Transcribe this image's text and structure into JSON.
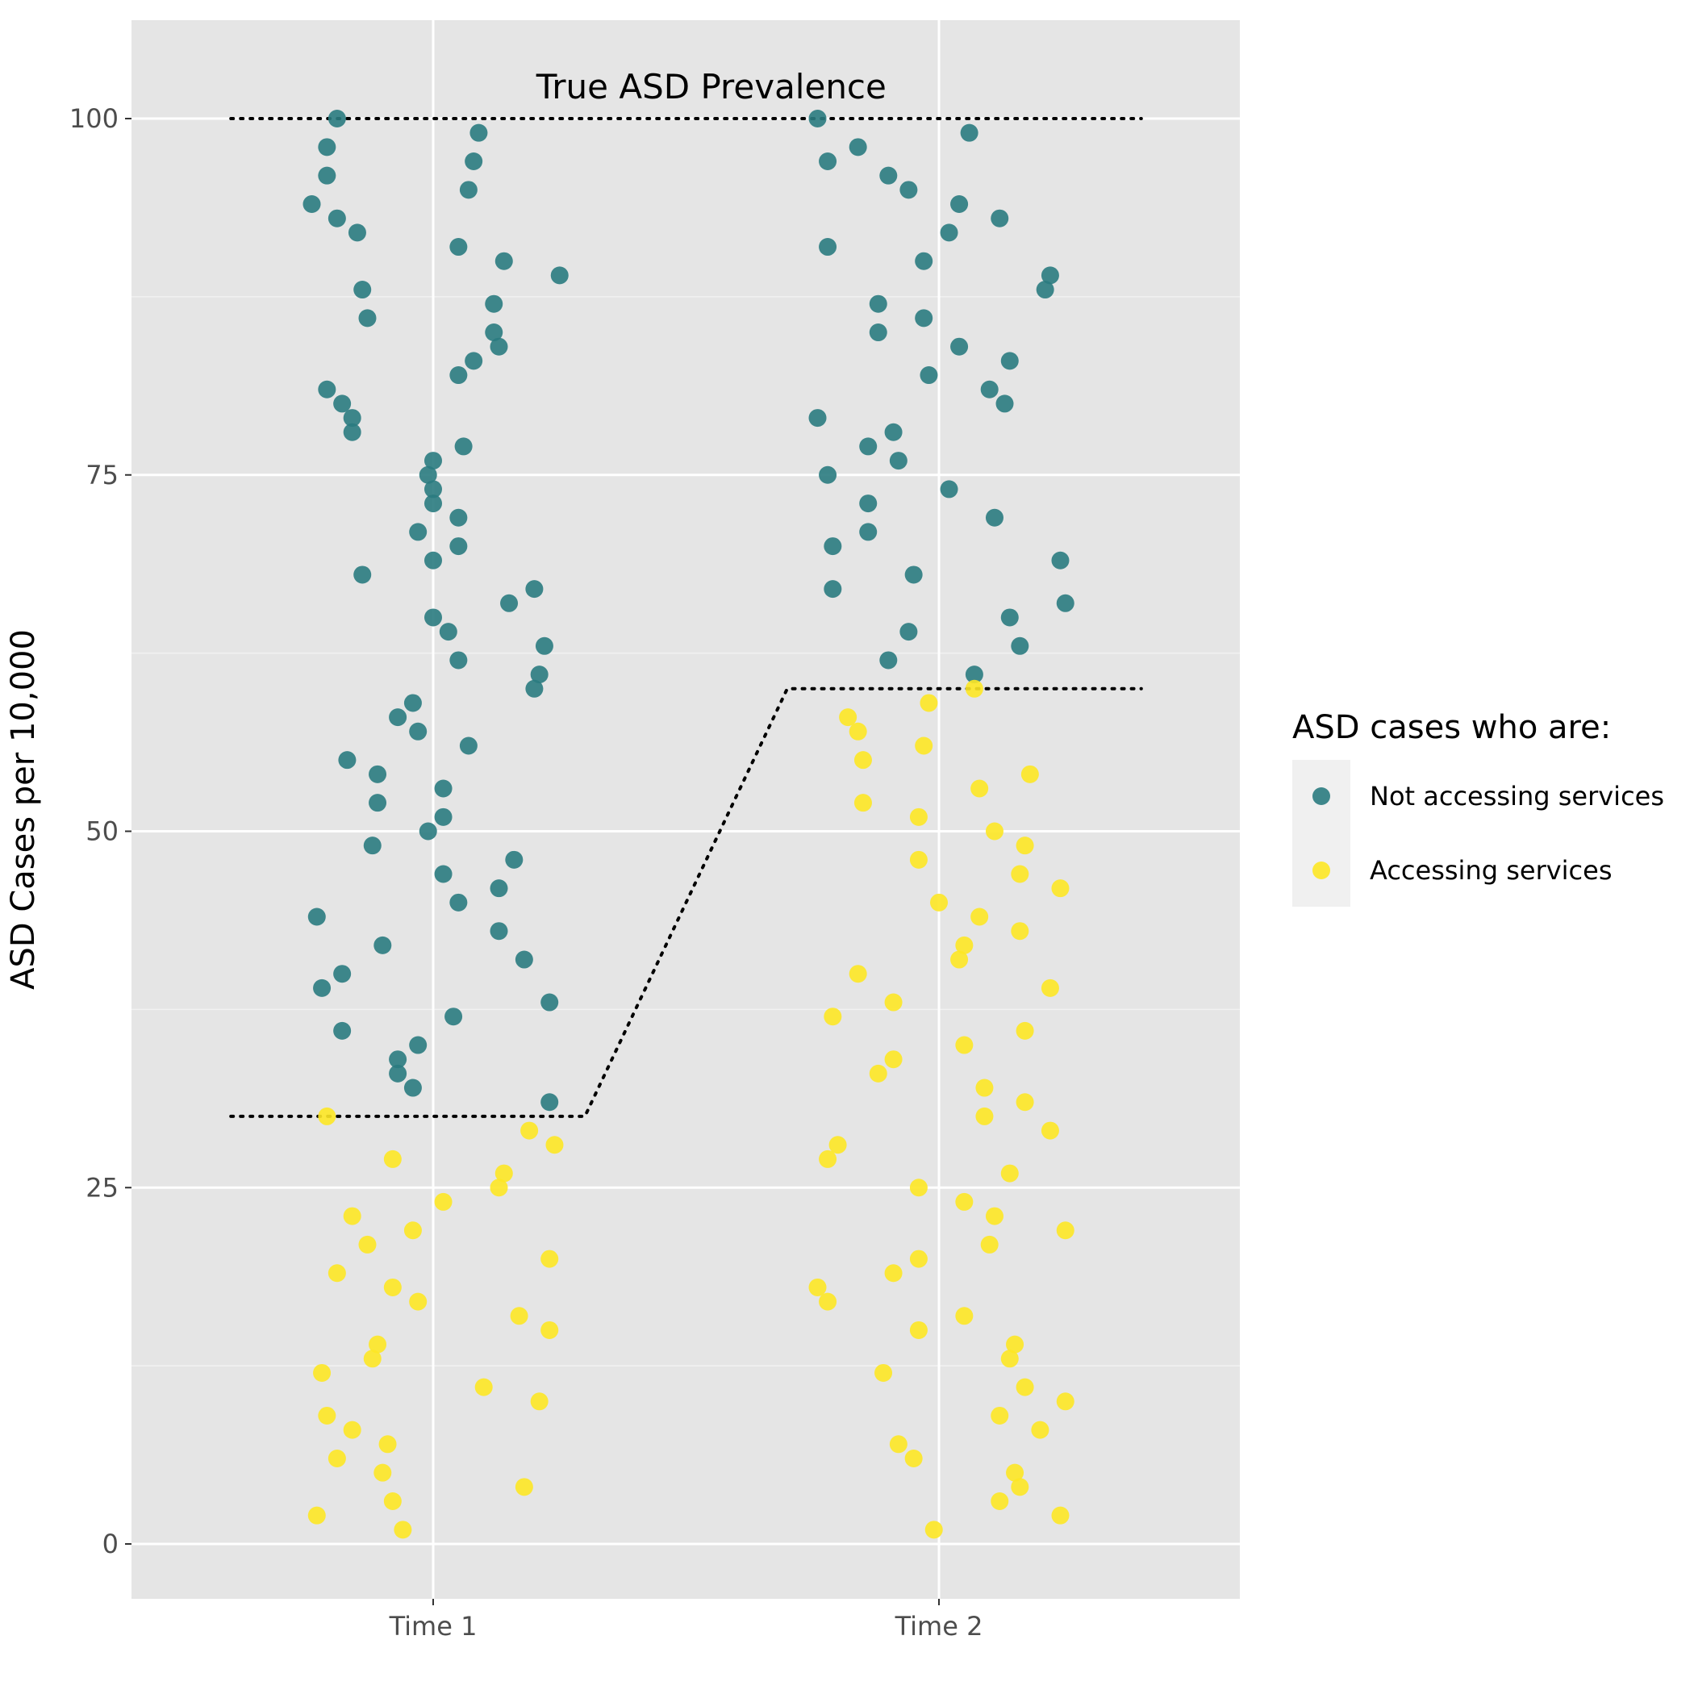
{
  "chart_data": {
    "type": "scatter",
    "title": "",
    "xlabel": "",
    "ylabel": "ASD Cases per 10,000",
    "ylim": [
      -4,
      107
    ],
    "y_ticks": [
      {
        "value": 0,
        "label": "0"
      },
      {
        "value": 25,
        "label": "25"
      },
      {
        "value": 50,
        "label": "50"
      },
      {
        "value": 75,
        "label": "75"
      },
      {
        "value": 100,
        "label": "100"
      }
    ],
    "x_categories": [
      "Time 1",
      "Time 2"
    ],
    "grid": true,
    "background": "#e5e5e5",
    "legend": {
      "title": "ASD cases who are:",
      "placement": "right",
      "items": [
        {
          "label": "Not accessing services",
          "color": "#2a7b7f"
        },
        {
          "label": "Accessing services",
          "color": "#fde725"
        }
      ]
    },
    "annotation": {
      "text": "True ASD Prevalence",
      "x": 1.55,
      "y": 102.2
    },
    "reference_lines": [
      {
        "name": "true-prevalence-line",
        "points": [
          [
            0.6,
            100
          ],
          [
            2.4,
            100
          ]
        ]
      },
      {
        "name": "accessing-services-line",
        "points": [
          [
            0.6,
            30
          ],
          [
            1.3,
            30
          ],
          [
            1.7,
            60
          ],
          [
            2.4,
            60
          ]
        ]
      }
    ],
    "series": [
      {
        "name": "Not accessing services",
        "color": "#2a7b7f",
        "points": [
          [
            0.81,
            100
          ],
          [
            0.79,
            98
          ],
          [
            0.79,
            96
          ],
          [
            0.76,
            94
          ],
          [
            0.81,
            93
          ],
          [
            0.85,
            92
          ],
          [
            0.86,
            88
          ],
          [
            0.87,
            86
          ],
          [
            0.79,
            81
          ],
          [
            0.82,
            80
          ],
          [
            0.84,
            79
          ],
          [
            0.84,
            78
          ],
          [
            0.86,
            68
          ],
          [
            0.77,
            44
          ],
          [
            0.78,
            39
          ],
          [
            0.82,
            40
          ],
          [
            0.82,
            36
          ],
          [
            0.83,
            55
          ],
          [
            0.89,
            54
          ],
          [
            0.89,
            52
          ],
          [
            0.88,
            49
          ],
          [
            0.9,
            42
          ],
          [
            0.93,
            34
          ],
          [
            0.93,
            33
          ],
          [
            0.96,
            32
          ],
          [
            0.97,
            35
          ],
          [
            0.93,
            58
          ],
          [
            0.96,
            59
          ],
          [
            0.97,
            57
          ],
          [
            0.97,
            71
          ],
          [
            0.99,
            75
          ],
          [
            1.0,
            76
          ],
          [
            1.0,
            73
          ],
          [
            1.0,
            69
          ],
          [
            1.0,
            65
          ],
          [
            1.0,
            74
          ],
          [
            0.99,
            50
          ],
          [
            1.02,
            51
          ],
          [
            1.02,
            53
          ],
          [
            1.02,
            47
          ],
          [
            1.03,
            64
          ],
          [
            1.05,
            62
          ],
          [
            1.05,
            45
          ],
          [
            1.04,
            37
          ],
          [
            1.05,
            91
          ],
          [
            1.05,
            82
          ],
          [
            1.06,
            77
          ],
          [
            1.05,
            72
          ],
          [
            1.05,
            70
          ],
          [
            1.07,
            56
          ],
          [
            1.09,
            99
          ],
          [
            1.08,
            97
          ],
          [
            1.07,
            95
          ],
          [
            1.08,
            83
          ],
          [
            1.12,
            85
          ],
          [
            1.13,
            84
          ],
          [
            1.12,
            87
          ],
          [
            1.14,
            90
          ],
          [
            1.15,
            66
          ],
          [
            1.13,
            46
          ],
          [
            1.13,
            43
          ],
          [
            1.16,
            48
          ],
          [
            1.18,
            41
          ],
          [
            1.2,
            67
          ],
          [
            1.2,
            60
          ],
          [
            1.21,
            61
          ],
          [
            1.22,
            63
          ],
          [
            1.23,
            38
          ],
          [
            1.23,
            31
          ],
          [
            1.25,
            89
          ],
          [
            1.76,
            100
          ],
          [
            1.78,
            97
          ],
          [
            1.84,
            98
          ],
          [
            1.78,
            91
          ],
          [
            1.88,
            87
          ],
          [
            1.88,
            85
          ],
          [
            1.76,
            79
          ],
          [
            1.78,
            75
          ],
          [
            1.79,
            70
          ],
          [
            1.79,
            67
          ],
          [
            1.86,
            77
          ],
          [
            1.86,
            73
          ],
          [
            1.86,
            71
          ],
          [
            1.91,
            78
          ],
          [
            1.92,
            76
          ],
          [
            1.9,
            96
          ],
          [
            1.94,
            95
          ],
          [
            1.97,
            90
          ],
          [
            1.97,
            86
          ],
          [
            1.98,
            82
          ],
          [
            1.95,
            68
          ],
          [
            1.94,
            64
          ],
          [
            1.9,
            62
          ],
          [
            2.02,
            92
          ],
          [
            2.04,
            94
          ],
          [
            2.04,
            84
          ],
          [
            2.02,
            74
          ],
          [
            2.06,
            99
          ],
          [
            2.07,
            61
          ],
          [
            2.12,
            93
          ],
          [
            2.1,
            81
          ],
          [
            2.11,
            72
          ],
          [
            2.13,
            80
          ],
          [
            2.14,
            83
          ],
          [
            2.14,
            65
          ],
          [
            2.16,
            63
          ],
          [
            2.21,
            88
          ],
          [
            2.22,
            89
          ],
          [
            2.24,
            69
          ],
          [
            2.25,
            66
          ]
        ]
      },
      {
        "name": "Accessing services",
        "color": "#fde725",
        "points": [
          [
            0.79,
            30
          ],
          [
            0.81,
            19
          ],
          [
            0.84,
            23
          ],
          [
            0.78,
            12
          ],
          [
            0.79,
            9
          ],
          [
            0.81,
            6
          ],
          [
            0.84,
            8
          ],
          [
            0.77,
            2
          ],
          [
            0.87,
            21
          ],
          [
            0.88,
            13
          ],
          [
            0.89,
            14
          ],
          [
            0.9,
            5
          ],
          [
            0.91,
            7
          ],
          [
            0.92,
            3
          ],
          [
            0.92,
            18
          ],
          [
            0.92,
            27
          ],
          [
            0.94,
            1
          ],
          [
            0.96,
            22
          ],
          [
            0.97,
            17
          ],
          [
            1.02,
            24
          ],
          [
            1.1,
            11
          ],
          [
            1.13,
            25
          ],
          [
            1.14,
            26
          ],
          [
            1.17,
            16
          ],
          [
            1.18,
            4
          ],
          [
            1.19,
            29
          ],
          [
            1.21,
            10
          ],
          [
            1.23,
            20
          ],
          [
            1.23,
            15
          ],
          [
            1.24,
            28
          ],
          [
            1.82,
            58
          ],
          [
            1.84,
            57
          ],
          [
            1.85,
            55
          ],
          [
            1.85,
            52
          ],
          [
            1.84,
            40
          ],
          [
            1.79,
            37
          ],
          [
            1.78,
            27
          ],
          [
            1.8,
            28
          ],
          [
            1.76,
            18
          ],
          [
            1.78,
            17
          ],
          [
            1.88,
            33
          ],
          [
            1.91,
            34
          ],
          [
            1.91,
            38
          ],
          [
            1.89,
            12
          ],
          [
            1.91,
            19
          ],
          [
            1.92,
            7
          ],
          [
            1.95,
            6
          ],
          [
            1.96,
            20
          ],
          [
            1.96,
            15
          ],
          [
            1.96,
            25
          ],
          [
            1.96,
            48
          ],
          [
            1.96,
            51
          ],
          [
            1.97,
            56
          ],
          [
            1.98,
            59
          ],
          [
            1.99,
            1
          ],
          [
            2.0,
            45
          ],
          [
            2.04,
            41
          ],
          [
            2.05,
            42
          ],
          [
            2.05,
            35
          ],
          [
            2.05,
            24
          ],
          [
            2.05,
            16
          ],
          [
            2.07,
            60
          ],
          [
            2.08,
            53
          ],
          [
            2.08,
            44
          ],
          [
            2.09,
            32
          ],
          [
            2.09,
            30
          ],
          [
            2.1,
            21
          ],
          [
            2.11,
            23
          ],
          [
            2.11,
            50
          ],
          [
            2.12,
            9
          ],
          [
            2.12,
            3
          ],
          [
            2.14,
            26
          ],
          [
            2.14,
            13
          ],
          [
            2.15,
            14
          ],
          [
            2.15,
            5
          ],
          [
            2.16,
            43
          ],
          [
            2.16,
            47
          ],
          [
            2.16,
            4
          ],
          [
            2.17,
            31
          ],
          [
            2.17,
            49
          ],
          [
            2.17,
            11
          ],
          [
            2.17,
            36
          ],
          [
            2.18,
            54
          ],
          [
            2.2,
            8
          ],
          [
            2.22,
            39
          ],
          [
            2.22,
            29
          ],
          [
            2.24,
            2
          ],
          [
            2.24,
            46
          ],
          [
            2.25,
            22
          ],
          [
            2.25,
            10
          ]
        ]
      }
    ]
  }
}
